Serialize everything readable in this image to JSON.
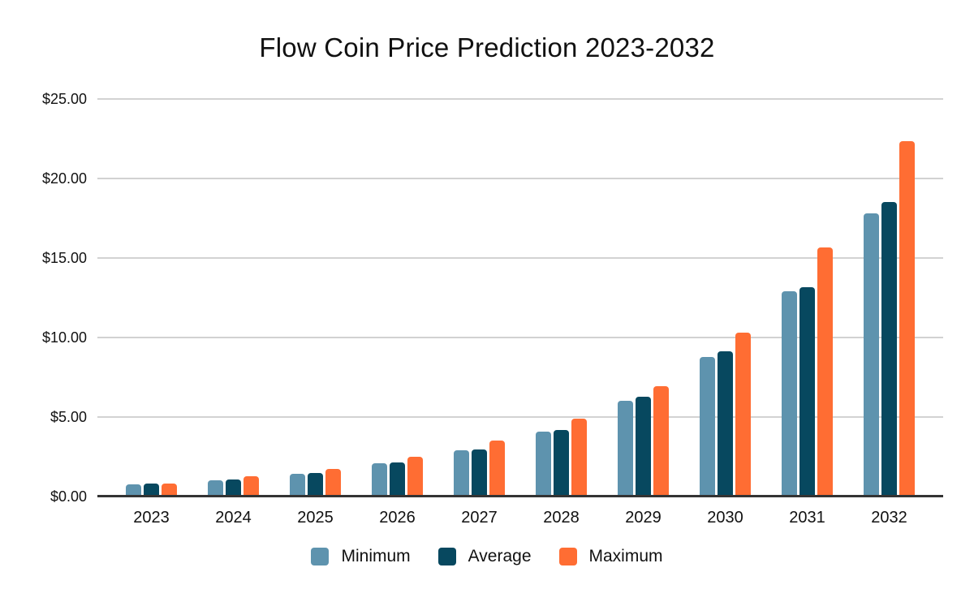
{
  "title": "Flow Coin Price Prediction 2023-2032",
  "chart_data": {
    "type": "bar",
    "title": "Flow Coin Price Prediction 2023-2032",
    "xlabel": "",
    "ylabel": "",
    "ylim": [
      0,
      25
    ],
    "grid": true,
    "legend_position": "bottom",
    "categories": [
      "2023",
      "2024",
      "2025",
      "2026",
      "2027",
      "2028",
      "2029",
      "2030",
      "2031",
      "2032"
    ],
    "series": [
      {
        "name": "Minimum",
        "color": "#5E93AE",
        "values": [
          0.77,
          1.01,
          1.45,
          2.09,
          2.9,
          4.06,
          6.04,
          8.8,
          12.92,
          17.8
        ]
      },
      {
        "name": "Average",
        "color": "#07485F",
        "values": [
          0.8,
          1.06,
          1.5,
          2.13,
          2.95,
          4.17,
          6.26,
          9.12,
          13.15,
          18.5
        ]
      },
      {
        "name": "Maximum",
        "color": "#FF6D33",
        "values": [
          0.82,
          1.28,
          1.72,
          2.5,
          3.51,
          4.91,
          6.95,
          10.33,
          15.68,
          22.36
        ]
      }
    ],
    "yticks": [
      {
        "value": 0,
        "label": "$0.00"
      },
      {
        "value": 5,
        "label": "$5.00"
      },
      {
        "value": 10,
        "label": "$10.00"
      },
      {
        "value": 15,
        "label": "$15.00"
      },
      {
        "value": 20,
        "label": "$20.00"
      },
      {
        "value": 25,
        "label": "$25.00"
      }
    ]
  },
  "colors": {
    "background": "#ffffff",
    "grid": "#d2d2d2",
    "axis": "#333333",
    "text": "#111111"
  }
}
